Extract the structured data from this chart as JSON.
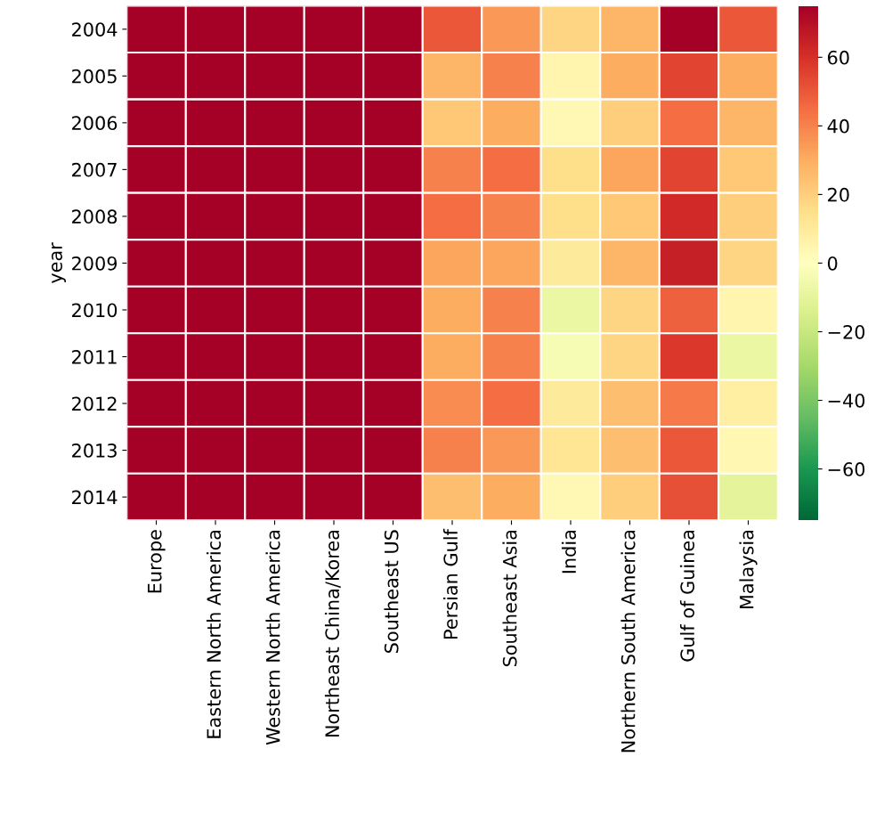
{
  "chart_data": {
    "type": "heatmap",
    "ylabel": "year",
    "categories": [
      "Europe",
      "Eastern North America",
      "Western North America",
      "Northeast China/Korea",
      "Southeast US",
      "Persian Gulf",
      "Southeast Asia",
      "India",
      "Northern South America",
      "Gulf of Guinea",
      "Malaysia"
    ],
    "y_categories": [
      "2004",
      "2005",
      "2006",
      "2007",
      "2008",
      "2009",
      "2010",
      "2011",
      "2012",
      "2013",
      "2014"
    ],
    "cells": [
      [
        75,
        75,
        75,
        75,
        75,
        50,
        35,
        18,
        28,
        75,
        50
      ],
      [
        75,
        75,
        75,
        75,
        75,
        28,
        40,
        5,
        30,
        55,
        30
      ],
      [
        75,
        75,
        75,
        75,
        75,
        22,
        30,
        3,
        20,
        45,
        28
      ],
      [
        75,
        75,
        75,
        75,
        75,
        40,
        45,
        15,
        32,
        55,
        22
      ],
      [
        75,
        75,
        75,
        75,
        75,
        45,
        40,
        15,
        22,
        62,
        20
      ],
      [
        75,
        75,
        75,
        75,
        75,
        32,
        32,
        10,
        28,
        65,
        18
      ],
      [
        75,
        75,
        75,
        75,
        75,
        30,
        40,
        -8,
        18,
        48,
        5
      ],
      [
        75,
        75,
        75,
        75,
        75,
        30,
        40,
        -3,
        18,
        58,
        -8
      ],
      [
        75,
        75,
        75,
        75,
        75,
        38,
        45,
        10,
        25,
        42,
        8
      ],
      [
        75,
        75,
        75,
        75,
        75,
        40,
        35,
        12,
        25,
        50,
        4
      ],
      [
        75,
        75,
        75,
        75,
        75,
        25,
        30,
        3,
        20,
        52,
        -10
      ]
    ],
    "clim": [
      -75,
      75
    ],
    "cticks": [
      {
        "value": -60,
        "label": "−60"
      },
      {
        "value": -40,
        "label": "−40"
      },
      {
        "value": -20,
        "label": "−20"
      },
      0,
      20,
      40,
      60
    ]
  }
}
